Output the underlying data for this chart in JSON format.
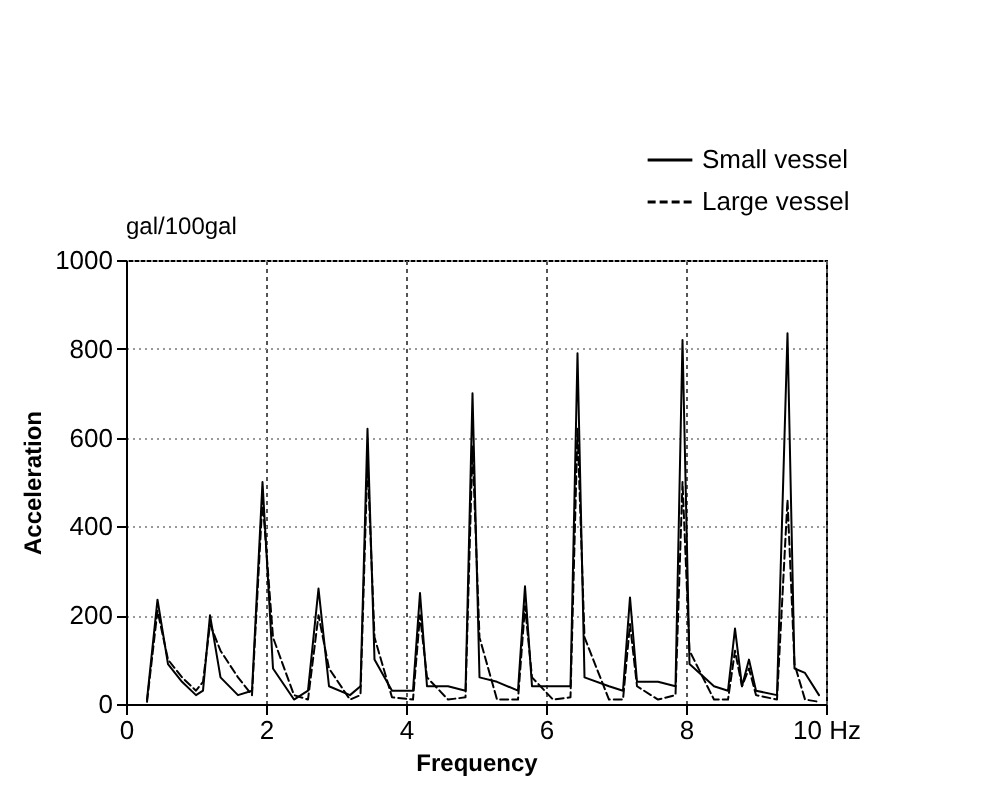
{
  "chart_data": {
    "type": "line",
    "xlabel": "Frequency",
    "ylabel": "Acceleration",
    "annotations": [
      "gal/100gal"
    ],
    "x": [
      0.3,
      0.45,
      0.6,
      0.8,
      1.0,
      1.1,
      1.2,
      1.35,
      1.6,
      1.8,
      1.95,
      2.1,
      2.4,
      2.6,
      2.75,
      2.9,
      3.2,
      3.35,
      3.45,
      3.55,
      3.8,
      4.1,
      4.2,
      4.3,
      4.6,
      4.85,
      4.95,
      5.05,
      5.3,
      5.6,
      5.7,
      5.8,
      6.1,
      6.35,
      6.45,
      6.55,
      6.9,
      7.1,
      7.2,
      7.3,
      7.6,
      7.85,
      7.95,
      8.05,
      8.4,
      8.6,
      8.7,
      8.8,
      8.9,
      9.0,
      9.3,
      9.45,
      9.55,
      9.7,
      9.9
    ],
    "series": [
      {
        "name": "Small vessel",
        "color": "#000000",
        "line_style": "solid",
        "values": [
          10,
          235,
          90,
          50,
          20,
          30,
          200,
          60,
          20,
          30,
          500,
          80,
          10,
          30,
          260,
          40,
          20,
          40,
          620,
          100,
          30,
          30,
          250,
          40,
          40,
          30,
          700,
          60,
          50,
          30,
          265,
          40,
          40,
          40,
          790,
          60,
          40,
          30,
          240,
          50,
          50,
          40,
          820,
          90,
          40,
          30,
          170,
          40,
          100,
          30,
          20,
          835,
          80,
          70,
          20
        ]
      },
      {
        "name": "Large vessel",
        "color": "#000000",
        "line_style": "dashed",
        "values": [
          5,
          210,
          100,
          60,
          30,
          50,
          180,
          120,
          60,
          20,
          460,
          150,
          20,
          10,
          200,
          80,
          10,
          20,
          550,
          150,
          15,
          10,
          200,
          60,
          10,
          15,
          580,
          150,
          10,
          10,
          220,
          60,
          10,
          15,
          620,
          150,
          10,
          10,
          180,
          40,
          10,
          20,
          500,
          120,
          10,
          10,
          120,
          40,
          80,
          20,
          10,
          460,
          90,
          10,
          5
        ]
      }
    ],
    "xlim": [
      0,
      10
    ],
    "xticks": [
      0,
      2,
      4,
      6,
      8,
      {
        "value": 10,
        "label": "10 Hz"
      }
    ],
    "ylim": [
      0,
      1000
    ],
    "yticks": [
      0,
      200,
      400,
      600,
      800,
      1000
    ],
    "grid": true,
    "legend": "top right"
  }
}
